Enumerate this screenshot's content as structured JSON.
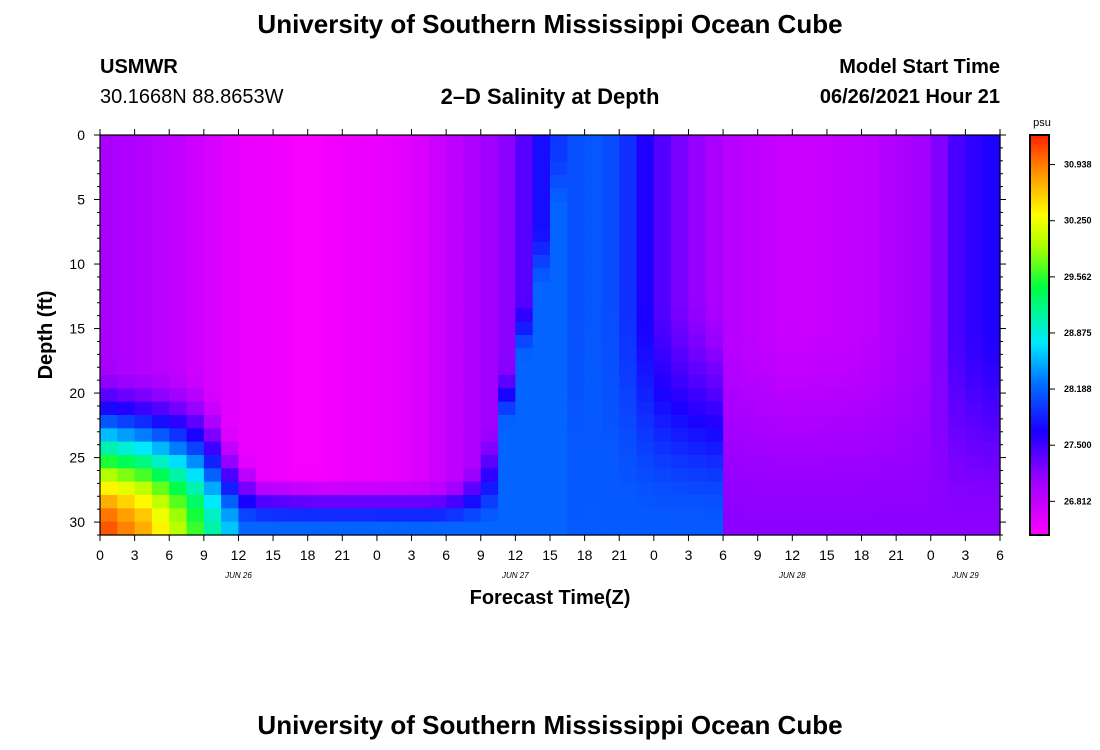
{
  "header": {
    "title": "University of Southern Mississippi Ocean Cube",
    "footer_title": "University of Southern Mississippi Ocean Cube",
    "station": "USMWR",
    "location": "30.1668N  88.8653W",
    "plot_title": "2–D Salinity at Depth",
    "start_label": "Model Start Time",
    "start_value": "06/26/2021 Hour 21"
  },
  "chart_data": {
    "type": "heatmap",
    "title": "2–D Salinity at Depth",
    "xlabel": "Forecast Time(Z)",
    "ylabel": "Depth (ft)",
    "x_unit": "forecast hour",
    "xlim": [
      0,
      78
    ],
    "ylim": [
      0,
      31
    ],
    "x_tick_labels": [
      "0",
      "3",
      "6",
      "9",
      "12",
      "15",
      "18",
      "21",
      "0",
      "3",
      "6",
      "9",
      "12",
      "15",
      "18",
      "21",
      "0",
      "3",
      "6",
      "9",
      "12",
      "15",
      "18",
      "21",
      "0",
      "3",
      "6"
    ],
    "y_ticks": [
      0,
      5,
      10,
      15,
      20,
      25,
      30
    ],
    "date_labels": [
      {
        "label": "JUN 26",
        "hour": 12
      },
      {
        "label": "JUN 27",
        "hour": 36
      },
      {
        "label": "JUN 28",
        "hour": 60
      },
      {
        "label": "JUN 29",
        "hour": 75
      }
    ],
    "colorbar": {
      "unit": "psu",
      "min": 26.4,
      "max": 31.3,
      "tick_values": [
        26.812,
        27.5,
        28.188,
        28.875,
        29.562,
        30.25,
        30.938
      ],
      "tick_labels": [
        "26.812",
        "27.500",
        "28.188",
        "28.875",
        "29.562",
        "30.250",
        "30.938"
      ]
    },
    "grid": false
  }
}
